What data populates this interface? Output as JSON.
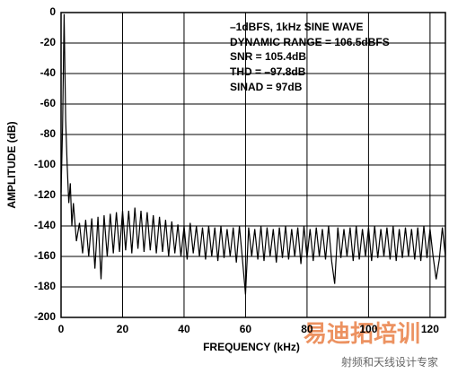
{
  "chart_data": {
    "type": "line",
    "xlabel": "FREQUENCY (kHz)",
    "ylabel": "AMPLITUDE (dB)",
    "annotations": [
      "–1dBFS, 1kHz SINE WAVE",
      "DYNAMIC RANGE = 106.5dBFS",
      "SNR = 105.4dB",
      "THD = –97.8dB",
      "SINAD = 97dB"
    ],
    "watermark": [
      "易迪拓培训",
      "射频和天线设计专家"
    ],
    "color": "#000000",
    "grid": true,
    "xlim": [
      0,
      125
    ],
    "xticks": [
      0,
      20,
      40,
      60,
      80,
      100,
      120
    ],
    "ylim": [
      -200,
      0
    ],
    "yticks": [
      0,
      -20,
      -40,
      -60,
      -80,
      -100,
      -120,
      -140,
      -160,
      -180,
      -200
    ],
    "x": [
      0,
      0.5,
      1,
      1.5,
      2,
      2.5,
      3,
      3.5,
      4,
      5,
      6,
      7,
      8,
      9,
      10,
      11,
      12,
      13,
      14,
      15,
      16,
      17,
      18,
      19,
      20,
      21,
      22,
      23,
      24,
      25,
      26,
      27,
      28,
      29,
      30,
      31,
      32,
      33,
      34,
      35,
      36,
      37,
      38,
      39,
      40,
      41,
      42,
      43,
      44,
      45,
      46,
      47,
      48,
      49,
      50,
      51,
      52,
      53,
      54,
      55,
      56,
      57,
      58,
      59,
      60,
      61,
      62,
      63,
      64,
      65,
      66,
      67,
      68,
      69,
      70,
      71,
      72,
      73,
      74,
      75,
      76,
      77,
      78,
      79,
      80,
      81,
      82,
      83,
      84,
      85,
      86,
      87,
      88,
      89,
      90,
      91,
      92,
      93,
      94,
      95,
      96,
      97,
      98,
      99,
      100,
      101,
      102,
      103,
      104,
      105,
      106,
      107,
      108,
      109,
      110,
      111,
      112,
      113,
      114,
      115,
      116,
      117,
      118,
      119,
      120,
      121,
      122,
      123,
      124,
      125
    ],
    "values": [
      -118,
      -75,
      -1,
      -70,
      -100,
      -125,
      -112,
      -140,
      -125,
      -150,
      -138,
      -158,
      -136,
      -160,
      -135,
      -168,
      -134,
      -175,
      -133,
      -160,
      -132,
      -158,
      -131,
      -157,
      -130,
      -156,
      -130,
      -158,
      -128,
      -155,
      -130,
      -157,
      -131,
      -156,
      -133,
      -158,
      -134,
      -157,
      -136,
      -160,
      -137,
      -158,
      -139,
      -160,
      -140,
      -162,
      -138,
      -158,
      -140,
      -160,
      -141,
      -162,
      -140,
      -160,
      -141,
      -163,
      -140,
      -161,
      -142,
      -160,
      -141,
      -164,
      -140,
      -162,
      -185,
      -141,
      -160,
      -142,
      -162,
      -140,
      -163,
      -141,
      -160,
      -142,
      -164,
      -141,
      -161,
      -140,
      -162,
      -142,
      -160,
      -141,
      -165,
      -140,
      -161,
      -142,
      -163,
      -141,
      -160,
      -142,
      -162,
      -140,
      -163,
      -178,
      -141,
      -161,
      -142,
      -160,
      -141,
      -163,
      -140,
      -162,
      -142,
      -160,
      -141,
      -163,
      -140,
      -161,
      -142,
      -160,
      -141,
      -162,
      -140,
      -163,
      -142,
      -161,
      -141,
      -160,
      -142,
      -162,
      -141,
      -163,
      -140,
      -161,
      -142,
      -160,
      -175,
      -162,
      -141,
      -160
    ]
  }
}
